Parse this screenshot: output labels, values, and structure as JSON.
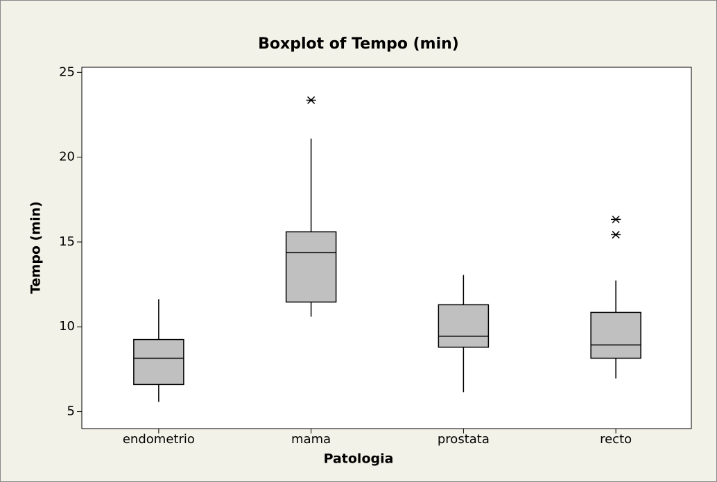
{
  "chart_data": {
    "type": "box",
    "title": "Boxplot of Tempo (min)",
    "x_label": "Patologia",
    "y_label": "Tempo (min)",
    "categories": [
      "endometrio",
      "mama",
      "prostata",
      "recto"
    ],
    "boxes": [
      {
        "min": 5.57,
        "q1": 6.6,
        "median": 8.15,
        "q3": 9.25,
        "max": 11.63,
        "outliers": []
      },
      {
        "min": 10.6,
        "q1": 11.46,
        "median": 14.37,
        "q3": 15.6,
        "max": 21.1,
        "outliers": [
          23.36
        ]
      },
      {
        "min": 6.15,
        "q1": 8.8,
        "median": 9.45,
        "q3": 11.3,
        "max": 13.06,
        "outliers": []
      },
      {
        "min": 6.96,
        "q1": 8.15,
        "median": 8.93,
        "q3": 10.85,
        "max": 12.73,
        "outliers": [
          16.33,
          15.43
        ]
      }
    ],
    "color": "#c0c0c0",
    "ylim": [
      4,
      25.3
    ],
    "yticks": [
      5,
      10,
      15,
      20,
      25
    ]
  }
}
